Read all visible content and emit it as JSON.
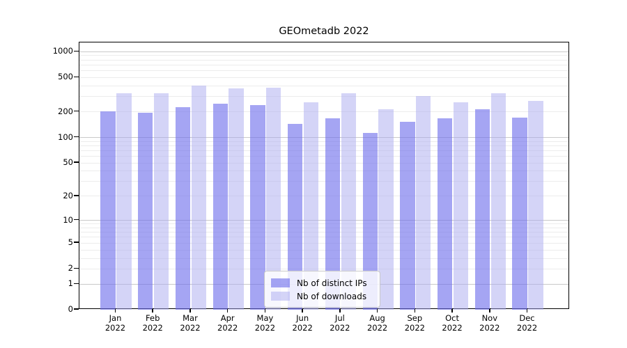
{
  "title": "GEOmetadb 2022",
  "chart_data": {
    "type": "bar",
    "title": "GEOmetadb 2022",
    "categories": [
      "Jan 2022",
      "Feb 2022",
      "Mar 2022",
      "Apr 2022",
      "May 2022",
      "Jun 2022",
      "Jul 2022",
      "Aug 2022",
      "Sep 2022",
      "Oct 2022",
      "Nov 2022",
      "Dec 2022"
    ],
    "x_tick_line1": [
      "Jan",
      "Feb",
      "Mar",
      "Apr",
      "May",
      "Jun",
      "Jul",
      "Aug",
      "Sep",
      "Oct",
      "Nov",
      "Dec"
    ],
    "x_tick_line2": "2022",
    "series": [
      {
        "name": "Nb of distinct IPs",
        "color": "rgba(110,110,235,0.62)",
        "solid_color": "#a5a5f0",
        "values": [
          203,
          195,
          225,
          246,
          239,
          145,
          167,
          112,
          154,
          167,
          212,
          172
        ]
      },
      {
        "name": "Nb of downloads",
        "color": "rgba(170,170,240,0.5)",
        "solid_color": "#d8d8f7",
        "values": [
          329,
          330,
          406,
          375,
          382,
          258,
          327,
          215,
          307,
          259,
          328,
          266
        ]
      }
    ],
    "yscale": "log1p",
    "ylim": [
      0,
      1250
    ],
    "y_ticks": [
      0,
      1,
      2,
      5,
      10,
      20,
      50,
      100,
      200,
      500,
      1000
    ],
    "y_major_gridlines": [
      1,
      10,
      100,
      1000
    ],
    "grid": "horizontal, major darker + log minor lighter",
    "legend_position": "lower center (inside plot)",
    "xlabel": "",
    "ylabel": ""
  },
  "legend": {
    "items": [
      {
        "label": "Nb of distinct IPs"
      },
      {
        "label": "Nb of downloads"
      }
    ]
  },
  "colors": {
    "background": "#ffffff",
    "spine": "#000000",
    "grid_major": "#c9c9c9",
    "grid_minor": "#ececec",
    "bar_distinct_ips": "rgba(110,110,235,0.62)",
    "bar_downloads": "rgba(170,170,240,0.5)",
    "text": "#000000"
  }
}
